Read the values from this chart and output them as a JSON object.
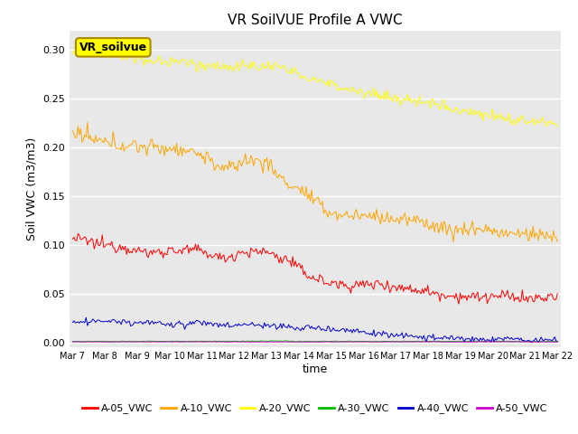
{
  "title": "VR SoilVUE Profile A VWC",
  "ylabel": "Soil VWC (m3/m3)",
  "xlabel": "time",
  "watermark_text": "VR_soilvue",
  "bg_color": "#e8e8e8",
  "ylim": [
    -0.005,
    0.32
  ],
  "xtick_labels": [
    "Mar 7",
    "Mar 8",
    "Mar 9",
    "Mar 10",
    "Mar 11",
    "Mar 12",
    "Mar 13",
    "Mar 14",
    "Mar 15",
    "Mar 16",
    "Mar 17",
    "Mar 18",
    "Mar 19",
    "Mar 20",
    "Mar 21",
    "Mar 22"
  ],
  "ytick_vals": [
    0.0,
    0.05,
    0.1,
    0.15,
    0.2,
    0.25,
    0.3
  ],
  "grid_color": "#ffffff",
  "legend_labels": [
    "A-05_VWC",
    "A-10_VWC",
    "A-20_VWC",
    "A-30_VWC",
    "A-40_VWC",
    "A-50_VWC"
  ],
  "legend_colors": [
    "#ff0000",
    "#ffa500",
    "#ffff00",
    "#00bb00",
    "#0000cc",
    "#cc00cc"
  ],
  "series_colors": {
    "A-05_VWC": "#ff0000",
    "A-10_VWC": "#ffa500",
    "A-20_VWC": "#ffff00",
    "A-30_VWC": "#00bb00",
    "A-40_VWC": "#0000cc",
    "A-50_VWC": "#cc00cc"
  },
  "n_points": 360,
  "n_days": 15,
  "A05_trend": [
    0.106,
    0.104,
    0.101,
    0.099,
    0.097,
    0.095,
    0.093,
    0.094,
    0.095,
    0.094,
    0.093,
    0.091,
    0.088,
    0.09,
    0.095,
    0.093,
    0.093,
    0.085,
    0.083,
    0.072,
    0.068,
    0.065,
    0.062,
    0.06,
    0.059,
    0.058,
    0.057,
    0.055,
    0.054,
    0.053,
    0.05,
    0.049,
    0.048,
    0.047,
    0.047,
    0.047,
    0.047,
    0.047,
    0.046,
    0.045,
    0.043
  ],
  "A10_trend": [
    0.214,
    0.211,
    0.208,
    0.205,
    0.204,
    0.202,
    0.2,
    0.198,
    0.196,
    0.195,
    0.194,
    0.19,
    0.183,
    0.18,
    0.188,
    0.187,
    0.186,
    0.172,
    0.16,
    0.153,
    0.143,
    0.135,
    0.131,
    0.13,
    0.13,
    0.129,
    0.127,
    0.124,
    0.123,
    0.122,
    0.118,
    0.116,
    0.115,
    0.114,
    0.113,
    0.113,
    0.112,
    0.112,
    0.111,
    0.11,
    0.109
  ],
  "A20_trend": [
    0.3,
    0.298,
    0.296,
    0.293,
    0.291,
    0.29,
    0.289,
    0.288,
    0.287,
    0.286,
    0.285,
    0.284,
    0.283,
    0.282,
    0.283,
    0.283,
    0.282,
    0.279,
    0.275,
    0.272,
    0.268,
    0.265,
    0.263,
    0.26,
    0.258,
    0.255,
    0.252,
    0.249,
    0.247,
    0.245,
    0.243,
    0.24,
    0.238,
    0.236,
    0.234,
    0.232,
    0.23,
    0.228,
    0.227,
    0.226,
    0.225
  ],
  "A30_trend": [
    0.001,
    0.001,
    0.001,
    0.001,
    0.001,
    0.001,
    0.001,
    0.001,
    0.001,
    0.001,
    0.001,
    0.001,
    0.001,
    0.001,
    0.001,
    0.001,
    0.001,
    0.001,
    0.001,
    0.001,
    0.001,
    0.001,
    0.001,
    0.001,
    0.001,
    0.001,
    0.001,
    0.001,
    0.001,
    0.001,
    0.001,
    0.001,
    0.001,
    0.001,
    0.001,
    0.001,
    0.001,
    0.001,
    0.001,
    0.001,
    0.001
  ],
  "A40_trend": [
    0.02,
    0.02,
    0.02,
    0.02,
    0.02,
    0.019,
    0.019,
    0.019,
    0.019,
    0.019,
    0.019,
    0.019,
    0.019,
    0.018,
    0.018,
    0.018,
    0.018,
    0.017,
    0.016,
    0.015,
    0.014,
    0.013,
    0.012,
    0.011,
    0.01,
    0.009,
    0.008,
    0.007,
    0.006,
    0.005,
    0.005,
    0.004,
    0.004,
    0.003,
    0.003,
    0.003,
    0.003,
    0.002,
    0.002,
    0.002,
    0.002
  ],
  "A50_trend": [
    0.0005,
    0.0005,
    0.0005,
    0.0005,
    0.0005,
    0.0005,
    0.0005,
    0.0005,
    0.0005,
    0.0005,
    0.0005,
    0.0005,
    0.0005,
    0.0005,
    0.0005,
    0.0005,
    0.0005,
    0.0005,
    0.0005,
    0.0005,
    0.0005,
    0.0005,
    0.0005,
    0.0005,
    0.0005,
    0.0005,
    0.0005,
    0.0005,
    0.0005,
    0.0005,
    0.0005,
    0.0005,
    0.0005,
    0.0005,
    0.0005,
    0.0005,
    0.0005,
    0.0005,
    0.0005,
    0.0005,
    0.0005
  ]
}
